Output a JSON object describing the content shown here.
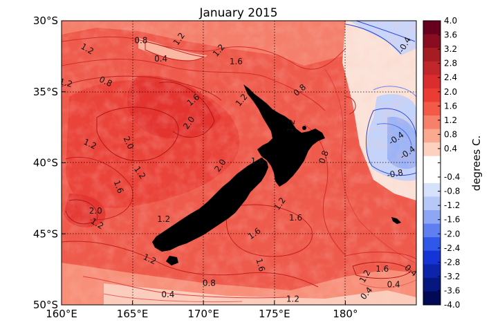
{
  "title": "January 2015",
  "map": {
    "lat_ticks": [
      "30°S",
      "35°S",
      "40°S",
      "45°S",
      "50°S"
    ],
    "lon_ticks": [
      "160°E",
      "165°E",
      "170°E",
      "175°E",
      "180°"
    ],
    "lat_range": [
      -50,
      -30
    ],
    "lon_range": [
      160,
      185
    ],
    "grid": "dotted",
    "land_color": "#000000",
    "contour_labels": [
      {
        "text": "0.8",
        "lon": 165.6,
        "lat": -31.4,
        "rot": 0
      },
      {
        "text": "1.2",
        "lon": 168.3,
        "lat": -31.3,
        "rot": -55
      },
      {
        "text": "1.2",
        "lon": 171.1,
        "lat": -32.1,
        "rot": -50
      },
      {
        "text": "1.6",
        "lon": 172.3,
        "lat": -32.9,
        "rot": 0
      },
      {
        "text": "0.4",
        "lon": 167.0,
        "lat": -32.7,
        "rot": 0
      },
      {
        "text": "1.2",
        "lon": 161.8,
        "lat": -32.0,
        "rot": 30
      },
      {
        "text": "0.8",
        "lon": 163.1,
        "lat": -34.3,
        "rot": 25
      },
      {
        "text": "1.2",
        "lon": 160.3,
        "lat": -34.4,
        "rot": 15
      },
      {
        "text": "1.6",
        "lon": 169.3,
        "lat": -35.6,
        "rot": -40
      },
      {
        "text": "1.2",
        "lon": 172.7,
        "lat": -35.6,
        "rot": -50
      },
      {
        "text": "2.0",
        "lon": 169.0,
        "lat": -37.2,
        "rot": -55
      },
      {
        "text": "0.8",
        "lon": 176.8,
        "lat": -34.9,
        "rot": -40
      },
      {
        "text": "1.2",
        "lon": 176.2,
        "lat": -37.4,
        "rot": -80
      },
      {
        "text": "0.8",
        "lon": 178.5,
        "lat": -39.6,
        "rot": -70
      },
      {
        "text": "1.2",
        "lon": 162.0,
        "lat": -38.7,
        "rot": 25
      },
      {
        "text": "2.0",
        "lon": 164.7,
        "lat": -38.6,
        "rot": 65
      },
      {
        "text": "1.2",
        "lon": 165.5,
        "lat": -40.7,
        "rot": 55
      },
      {
        "text": "2.0",
        "lon": 171.2,
        "lat": -40.2,
        "rot": -55
      },
      {
        "text": "1.6",
        "lon": 173.8,
        "lat": -39.9,
        "rot": 0
      },
      {
        "text": "1.6",
        "lon": 164.0,
        "lat": -41.7,
        "rot": 70
      },
      {
        "text": "2.0",
        "lon": 162.4,
        "lat": -43.4,
        "rot": 0
      },
      {
        "text": "1.2",
        "lon": 162.5,
        "lat": -44.3,
        "rot": 30
      },
      {
        "text": "1.2",
        "lon": 167.2,
        "lat": -44.0,
        "rot": 0
      },
      {
        "text": "1.2",
        "lon": 175.4,
        "lat": -42.9,
        "rot": -55
      },
      {
        "text": "1.6",
        "lon": 176.5,
        "lat": -43.9,
        "rot": 0
      },
      {
        "text": "1.6",
        "lon": 173.6,
        "lat": -45.0,
        "rot": -35
      },
      {
        "text": "1.2",
        "lon": 166.2,
        "lat": -46.8,
        "rot": 25
      },
      {
        "text": "1.6",
        "lon": 174.0,
        "lat": -47.2,
        "rot": 75
      },
      {
        "text": "0.4",
        "lon": 167.5,
        "lat": -49.3,
        "rot": 0
      },
      {
        "text": "0.8",
        "lon": 170.4,
        "lat": -48.5,
        "rot": 0
      },
      {
        "text": "1.2",
        "lon": 176.3,
        "lat": -49.6,
        "rot": 0
      },
      {
        "text": "1.6",
        "lon": 182.6,
        "lat": -47.5,
        "rot": 0
      },
      {
        "text": "1.2",
        "lon": 181.4,
        "lat": -48.0,
        "rot": -60
      },
      {
        "text": "0.4",
        "lon": 181.5,
        "lat": -49.2,
        "rot": -50
      },
      {
        "text": "0.4",
        "lon": 183.4,
        "lat": -48.6,
        "rot": 0
      },
      {
        "text": "0.4",
        "lon": 184.6,
        "lat": -47.6,
        "rot": 40
      },
      {
        "text": "-0.4",
        "lon": 184.2,
        "lat": -31.7,
        "rot": -60
      },
      {
        "text": "-0.4",
        "lon": 183.6,
        "lat": -38.3,
        "rot": -35
      },
      {
        "text": "-0.4",
        "lon": 184.4,
        "lat": -39.3,
        "rot": -35
      },
      {
        "text": "-0.8",
        "lon": 183.5,
        "lat": -40.8,
        "rot": -10
      }
    ]
  },
  "colorbar": {
    "label": "degrees C.",
    "ticks": [
      "4.0",
      "3.6",
      "3.2",
      "2.8",
      "2.4",
      "2.0",
      "1.6",
      "1.2",
      "0.8",
      "0.4",
      "",
      "-0.4",
      "-0.8",
      "-1.2",
      "-1.6",
      "-2.0",
      "-2.4",
      "-2.8",
      "-3.2",
      "-3.6",
      "-4.0"
    ],
    "colors": [
      "#67001f",
      "#8a0c20",
      "#a51d22",
      "#c0262a",
      "#da2e2e",
      "#eb3c34",
      "#f25a47",
      "#f6806a",
      "#faa890",
      "#fcd1bf",
      "#ffffff",
      "#ffffff",
      "#d6e2fb",
      "#b6c8f7",
      "#8da7f5",
      "#5f7ff0",
      "#2f57ea",
      "#1434d6",
      "#0b24aa",
      "#06187f",
      "#030a55"
    ]
  }
}
